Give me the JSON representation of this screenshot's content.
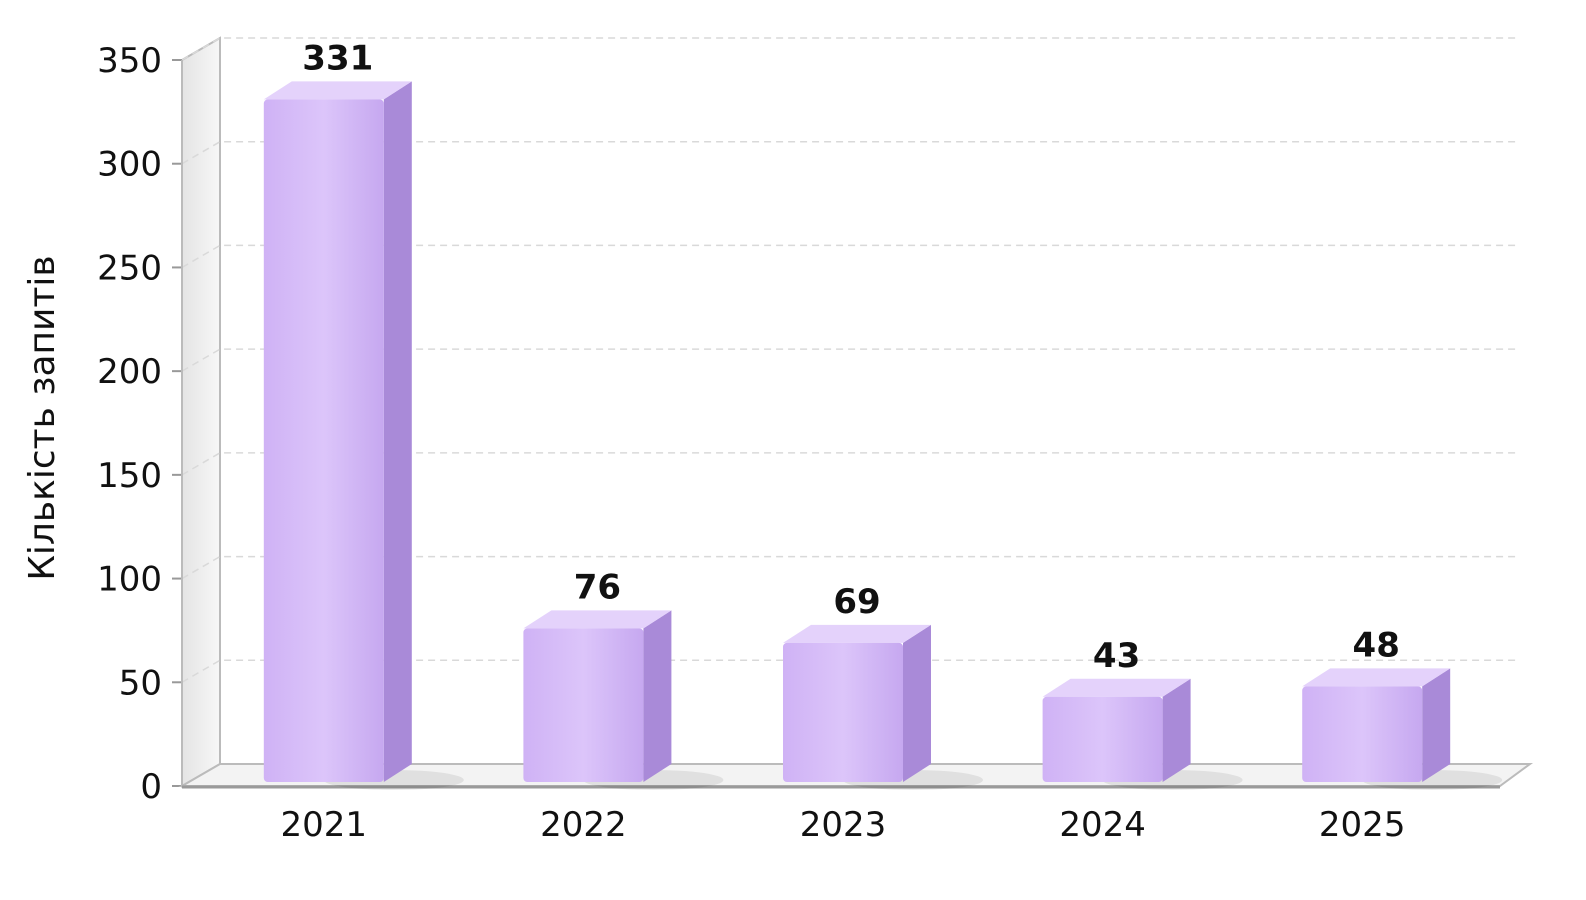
{
  "chart_data": {
    "type": "bar",
    "title": "",
    "xlabel": "",
    "ylabel": "Кількість запитів",
    "categories": [
      "2021",
      "2022",
      "2023",
      "2024",
      "2025"
    ],
    "values": [
      331,
      76,
      69,
      43,
      48
    ],
    "ylim": [
      0,
      350
    ],
    "yticks": [
      0,
      50,
      100,
      150,
      200,
      250,
      300,
      350
    ],
    "grid": true,
    "style_3d": true,
    "colors": {
      "bar_front": "#d4b8f7",
      "bar_side": "#a98ad8",
      "bar_top": "#e4d2fb",
      "gridline": "#d9d9d9",
      "axis": "#bbbbbb"
    }
  }
}
